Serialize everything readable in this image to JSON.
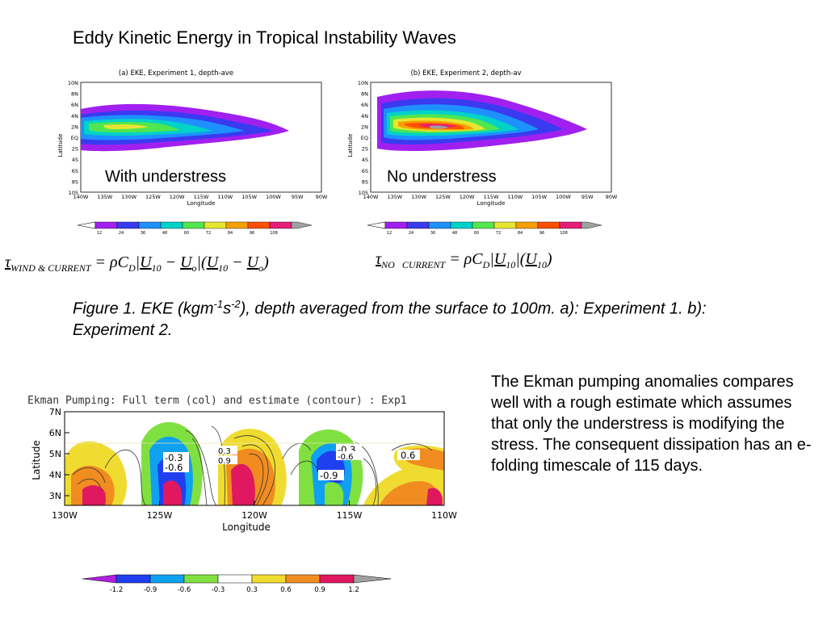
{
  "title": "Eddy Kinetic Energy in Tropical Instability Waves",
  "panel_a": {
    "header": "(a) EKE, Experiment 1, depth-ave",
    "ylabel": "Latitude",
    "xlabel": "Longitude",
    "yticks": [
      "10N",
      "8N",
      "6N",
      "4N",
      "2N",
      "EQ",
      "2S",
      "4S",
      "6S",
      "8S",
      "10S"
    ],
    "xticks": [
      "140W",
      "135W",
      "130W",
      "125W",
      "120W",
      "115W",
      "110W",
      "105W",
      "100W",
      "95W",
      "90W"
    ],
    "label": "With understress",
    "colorbar_ticks": [
      "12",
      "24",
      "36",
      "48",
      "60",
      "72",
      "84",
      "96",
      "108"
    ]
  },
  "panel_b": {
    "header": "(b) EKE, Experiment 2, depth-av",
    "ylabel": "Latitude",
    "xlabel": "Longitude",
    "yticks": [
      "10N",
      "8N",
      "6N",
      "4N",
      "2N",
      "EQ",
      "2S",
      "4S",
      "6S",
      "8S",
      "10S"
    ],
    "xticks": [
      "140W",
      "135W",
      "130W",
      "125W",
      "120W",
      "115W",
      "110W",
      "105W",
      "100W",
      "95W",
      "90W"
    ],
    "label": "No understress",
    "colorbar_ticks": [
      "12",
      "24",
      "36",
      "48",
      "60",
      "72",
      "84",
      "96",
      "108"
    ]
  },
  "eke_colors": [
    "#a020f0",
    "#3a3af0",
    "#1e90ff",
    "#00d2c8",
    "#50e650",
    "#e6e632",
    "#f5a000",
    "#ff5000",
    "#e61e78",
    "#a0a0a0"
  ],
  "caption": {
    "prefix": "Figure 1. EKE (kgm",
    "sup1": "-1",
    "mid": "s",
    "sup2": "-2",
    "suffix": "), depth averaged from the surface to 100m. a): Experiment 1. b): Experiment 2."
  },
  "ekman": {
    "title": "Ekman Pumping: Full term (col) and estimate (contour) : Exp1",
    "ylabel": "Latitude",
    "xlabel": "Longitude",
    "yticks": [
      "7N",
      "6N",
      "5N",
      "4N",
      "3N"
    ],
    "xticks": [
      "130W",
      "125W",
      "120W",
      "115W",
      "110W"
    ],
    "contour_labels": [
      "-0.3",
      "-0.6",
      "0.3",
      "0.9",
      "-0.3",
      "-0.6",
      "-0.9",
      "0.6"
    ],
    "colorbar_ticks": [
      "-1.2",
      "-0.9",
      "-0.6",
      "-0.3",
      "0.3",
      "0.6",
      "0.9",
      "1.2"
    ],
    "colors": [
      "#b020e0",
      "#2040f0",
      "#10a0f0",
      "#80e040",
      "#ffffff",
      "#f0dc30",
      "#f08c20",
      "#e01860",
      "#a0a0a0"
    ]
  },
  "body_text": "The Ekman pumping anomalies compares well with a rough estimate which assumes that only the understress is modifying the stress. The consequent dissipation has an e-folding timescale of 115 days."
}
